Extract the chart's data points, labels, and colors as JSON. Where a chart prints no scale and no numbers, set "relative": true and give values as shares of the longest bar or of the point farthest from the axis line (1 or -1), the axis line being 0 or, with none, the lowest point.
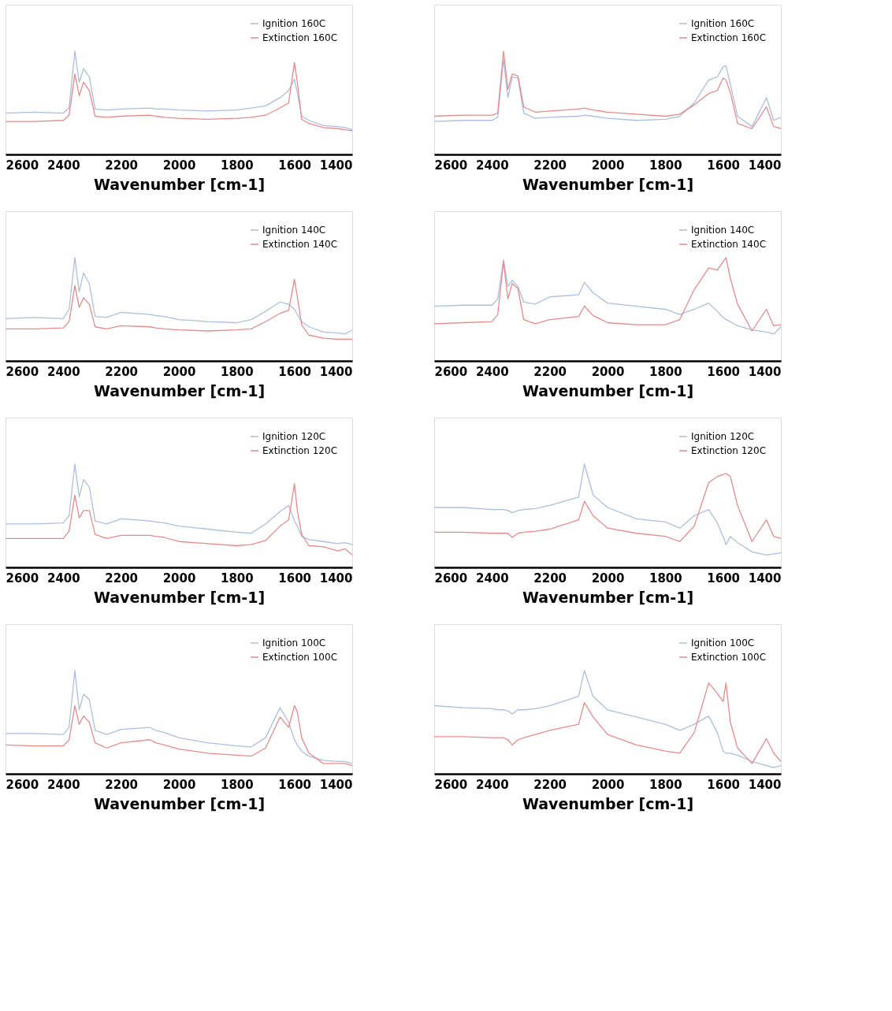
{
  "chart_data": [
    {
      "type": "line",
      "relative": true,
      "xlabel": "Wavenumber [cm-1]",
      "xlim": [
        2600,
        1400
      ],
      "xticks": [
        2600,
        2400,
        2200,
        2000,
        1800,
        1600,
        1400
      ],
      "grid": false,
      "legend": "top right",
      "line_style": "solid",
      "x": [
        2600,
        2500,
        2400,
        2380,
        2360,
        2345,
        2330,
        2310,
        2290,
        2250,
        2200,
        2100,
        2080,
        2050,
        2000,
        1900,
        1800,
        1750,
        1700,
        1650,
        1620,
        1600,
        1590,
        1575,
        1550,
        1500,
        1450,
        1425,
        1400
      ],
      "series": [
        {
          "name": "Ignition 160C",
          "color": "#a9bfdf",
          "values": [
            0.4,
            0.41,
            0.4,
            0.45,
            1.0,
            0.7,
            0.83,
            0.75,
            0.44,
            0.43,
            0.44,
            0.45,
            0.44,
            0.44,
            0.43,
            0.42,
            0.43,
            0.45,
            0.47,
            0.55,
            0.62,
            0.73,
            0.6,
            0.37,
            0.33,
            0.28,
            0.27,
            0.26,
            0.24
          ]
        },
        {
          "name": "Extinction 160C",
          "color": "#e88a8a",
          "values": [
            0.32,
            0.32,
            0.33,
            0.38,
            0.78,
            0.57,
            0.7,
            0.62,
            0.37,
            0.36,
            0.37,
            0.38,
            0.37,
            0.36,
            0.35,
            0.34,
            0.35,
            0.36,
            0.38,
            0.45,
            0.5,
            0.89,
            0.7,
            0.34,
            0.3,
            0.26,
            0.25,
            0.24,
            0.23
          ]
        }
      ]
    },
    {
      "type": "line",
      "relative": true,
      "xlabel": "Wavenumber [cm-1]",
      "xlim": [
        2600,
        1400
      ],
      "xticks": [
        2600,
        2400,
        2200,
        2000,
        1800,
        1600,
        1400
      ],
      "grid": false,
      "legend": "top right",
      "line_style": "solid",
      "x": [
        2600,
        2500,
        2400,
        2380,
        2360,
        2345,
        2330,
        2310,
        2290,
        2250,
        2200,
        2100,
        2080,
        2050,
        2000,
        1900,
        1800,
        1750,
        1700,
        1650,
        1620,
        1600,
        1590,
        1575,
        1550,
        1500,
        1450,
        1425,
        1400
      ],
      "series": [
        {
          "name": "Ignition 160C",
          "color": "#a9bfdf",
          "values": [
            0.32,
            0.33,
            0.33,
            0.36,
            0.92,
            0.55,
            0.75,
            0.74,
            0.4,
            0.35,
            0.36,
            0.37,
            0.38,
            0.37,
            0.35,
            0.33,
            0.34,
            0.37,
            0.5,
            0.72,
            0.75,
            0.85,
            0.86,
            0.68,
            0.37,
            0.27,
            0.55,
            0.33,
            0.36
          ]
        },
        {
          "name": "Extinction 160C",
          "color": "#e88a8a",
          "values": [
            0.37,
            0.38,
            0.38,
            0.4,
            1.0,
            0.63,
            0.78,
            0.76,
            0.46,
            0.41,
            0.42,
            0.44,
            0.45,
            0.43,
            0.41,
            0.39,
            0.37,
            0.39,
            0.48,
            0.59,
            0.62,
            0.74,
            0.72,
            0.6,
            0.3,
            0.25,
            0.46,
            0.27,
            0.25
          ]
        }
      ]
    },
    {
      "type": "line",
      "relative": true,
      "xlabel": "Wavenumber [cm-1]",
      "xlim": [
        2600,
        1400
      ],
      "xticks": [
        2600,
        2400,
        2200,
        2000,
        1800,
        1600,
        1400
      ],
      "grid": false,
      "legend": "top right",
      "line_style": "solid",
      "x": [
        2600,
        2500,
        2400,
        2380,
        2360,
        2345,
        2330,
        2310,
        2290,
        2250,
        2200,
        2100,
        2080,
        2050,
        2000,
        1900,
        1800,
        1750,
        1700,
        1650,
        1620,
        1600,
        1590,
        1575,
        1550,
        1500,
        1450,
        1425,
        1400
      ],
      "series": [
        {
          "name": "Ignition 140C",
          "color": "#a9bfdf",
          "values": [
            0.41,
            0.42,
            0.41,
            0.5,
            1.0,
            0.67,
            0.85,
            0.75,
            0.43,
            0.42,
            0.47,
            0.45,
            0.44,
            0.43,
            0.4,
            0.38,
            0.37,
            0.4,
            0.48,
            0.57,
            0.55,
            0.5,
            0.45,
            0.38,
            0.33,
            0.28,
            0.27,
            0.26,
            0.3
          ]
        },
        {
          "name": "Extinction 140C",
          "color": "#e88a8a",
          "values": [
            0.31,
            0.31,
            0.32,
            0.38,
            0.73,
            0.52,
            0.61,
            0.55,
            0.33,
            0.31,
            0.34,
            0.33,
            0.32,
            0.31,
            0.3,
            0.29,
            0.3,
            0.31,
            0.38,
            0.46,
            0.49,
            0.79,
            0.62,
            0.35,
            0.25,
            0.22,
            0.21,
            0.21,
            0.21
          ]
        }
      ]
    },
    {
      "type": "line",
      "relative": true,
      "xlabel": "Wavenumber [cm-1]",
      "xlim": [
        2600,
        1400
      ],
      "xticks": [
        2600,
        2400,
        2200,
        2000,
        1800,
        1600,
        1400
      ],
      "grid": false,
      "legend": "top right",
      "line_style": "solid",
      "x": [
        2600,
        2500,
        2400,
        2380,
        2360,
        2345,
        2330,
        2310,
        2290,
        2250,
        2200,
        2100,
        2080,
        2050,
        2000,
        1900,
        1800,
        1750,
        1700,
        1650,
        1620,
        1600,
        1590,
        1575,
        1550,
        1500,
        1450,
        1425,
        1400
      ],
      "series": [
        {
          "name": "Ignition 140C",
          "color": "#a9bfdf",
          "values": [
            0.53,
            0.54,
            0.54,
            0.6,
            0.98,
            0.72,
            0.78,
            0.72,
            0.57,
            0.55,
            0.62,
            0.64,
            0.76,
            0.66,
            0.56,
            0.53,
            0.5,
            0.45,
            0.5,
            0.56,
            0.48,
            0.42,
            0.4,
            0.38,
            0.34,
            0.3,
            0.28,
            0.26,
            0.33
          ]
        },
        {
          "name": "Extinction 140C",
          "color": "#e88a8a",
          "values": [
            0.36,
            0.37,
            0.38,
            0.45,
            0.96,
            0.6,
            0.75,
            0.7,
            0.4,
            0.36,
            0.4,
            0.43,
            0.53,
            0.44,
            0.37,
            0.35,
            0.35,
            0.4,
            0.69,
            0.9,
            0.88,
            0.96,
            1.0,
            0.8,
            0.55,
            0.29,
            0.5,
            0.34,
            0.35
          ]
        }
      ]
    },
    {
      "type": "line",
      "relative": true,
      "xlabel": "Wavenumber [cm-1]",
      "xlim": [
        2600,
        1400
      ],
      "xticks": [
        2600,
        2400,
        2200,
        2000,
        1800,
        1600,
        1400
      ],
      "grid": false,
      "legend": "top right",
      "line_style": "solid",
      "x": [
        2600,
        2500,
        2400,
        2380,
        2360,
        2345,
        2330,
        2310,
        2290,
        2250,
        2200,
        2100,
        2080,
        2050,
        2000,
        1900,
        1800,
        1750,
        1700,
        1650,
        1620,
        1600,
        1590,
        1575,
        1550,
        1500,
        1450,
        1425,
        1400
      ],
      "series": [
        {
          "name": "Ignition 120C",
          "color": "#a9bfdf",
          "values": [
            0.42,
            0.42,
            0.43,
            0.5,
            1.0,
            0.68,
            0.85,
            0.78,
            0.45,
            0.42,
            0.47,
            0.45,
            0.44,
            0.43,
            0.4,
            0.37,
            0.34,
            0.33,
            0.42,
            0.54,
            0.6,
            0.45,
            0.4,
            0.3,
            0.27,
            0.25,
            0.23,
            0.24,
            0.22
          ]
        },
        {
          "name": "Extinction 120C",
          "color": "#e88a8a",
          "values": [
            0.28,
            0.28,
            0.28,
            0.35,
            0.7,
            0.48,
            0.55,
            0.55,
            0.32,
            0.28,
            0.31,
            0.31,
            0.3,
            0.29,
            0.25,
            0.23,
            0.21,
            0.22,
            0.26,
            0.4,
            0.46,
            0.81,
            0.55,
            0.32,
            0.21,
            0.2,
            0.16,
            0.18,
            0.12
          ]
        }
      ]
    },
    {
      "type": "line",
      "relative": true,
      "xlabel": "Wavenumber [cm-1]",
      "xlim": [
        2600,
        1400
      ],
      "xticks": [
        2600,
        2400,
        2200,
        2000,
        1800,
        1600,
        1400
      ],
      "grid": false,
      "legend": "top right",
      "line_style": "solid",
      "x": [
        2600,
        2500,
        2400,
        2380,
        2360,
        2345,
        2330,
        2310,
        2290,
        2250,
        2200,
        2100,
        2080,
        2050,
        2000,
        1900,
        1800,
        1750,
        1700,
        1650,
        1620,
        1600,
        1590,
        1575,
        1550,
        1500,
        1450,
        1425,
        1400
      ],
      "series": [
        {
          "name": "Ignition 120C",
          "color": "#a9bfdf",
          "values": [
            0.58,
            0.58,
            0.56,
            0.56,
            0.56,
            0.55,
            0.53,
            0.55,
            0.56,
            0.57,
            0.6,
            0.68,
            1.0,
            0.7,
            0.58,
            0.47,
            0.44,
            0.38,
            0.5,
            0.56,
            0.43,
            0.3,
            0.22,
            0.3,
            0.24,
            0.15,
            0.12,
            0.13,
            0.14
          ]
        },
        {
          "name": "Extinction 120C",
          "color": "#e88a8a",
          "values": [
            0.34,
            0.34,
            0.33,
            0.33,
            0.33,
            0.33,
            0.29,
            0.33,
            0.34,
            0.35,
            0.37,
            0.46,
            0.64,
            0.5,
            0.38,
            0.33,
            0.3,
            0.25,
            0.4,
            0.82,
            0.88,
            0.9,
            0.91,
            0.88,
            0.6,
            0.25,
            0.46,
            0.3,
            0.28
          ]
        }
      ]
    },
    {
      "type": "line",
      "relative": true,
      "xlabel": "Wavenumber [cm-1]",
      "xlim": [
        2600,
        1400
      ],
      "xticks": [
        2600,
        2400,
        2200,
        2000,
        1800,
        1600,
        1400
      ],
      "grid": false,
      "legend": "top right",
      "line_style": "solid",
      "x": [
        2600,
        2500,
        2400,
        2380,
        2360,
        2345,
        2330,
        2310,
        2290,
        2250,
        2200,
        2100,
        2080,
        2050,
        2000,
        1900,
        1800,
        1750,
        1700,
        1650,
        1620,
        1600,
        1590,
        1575,
        1550,
        1500,
        1450,
        1425,
        1400
      ],
      "series": [
        {
          "name": "Ignition 100C",
          "color": "#a9bfdf",
          "values": [
            0.39,
            0.39,
            0.38,
            0.45,
            1.0,
            0.62,
            0.77,
            0.72,
            0.42,
            0.38,
            0.43,
            0.45,
            0.42,
            0.4,
            0.35,
            0.3,
            0.27,
            0.26,
            0.35,
            0.64,
            0.5,
            0.33,
            0.28,
            0.22,
            0.17,
            0.13,
            0.12,
            0.12,
            0.1
          ]
        },
        {
          "name": "Extinction 100C",
          "color": "#e88a8a",
          "values": [
            0.28,
            0.27,
            0.27,
            0.33,
            0.66,
            0.48,
            0.56,
            0.5,
            0.3,
            0.25,
            0.3,
            0.33,
            0.3,
            0.28,
            0.24,
            0.2,
            0.18,
            0.17,
            0.25,
            0.55,
            0.45,
            0.66,
            0.6,
            0.35,
            0.2,
            0.1,
            0.1,
            0.1,
            0.08
          ]
        }
      ]
    },
    {
      "type": "line",
      "relative": true,
      "xlabel": "Wavenumber [cm-1]",
      "xlim": [
        2600,
        1400
      ],
      "xticks": [
        2600,
        2400,
        2200,
        2000,
        1800,
        1600,
        1400
      ],
      "grid": false,
      "legend": "top right",
      "line_style": "solid",
      "x": [
        2600,
        2500,
        2400,
        2380,
        2360,
        2345,
        2330,
        2310,
        2290,
        2250,
        2200,
        2100,
        2080,
        2050,
        2000,
        1900,
        1800,
        1750,
        1700,
        1650,
        1620,
        1600,
        1590,
        1575,
        1550,
        1500,
        1450,
        1425,
        1400
      ],
      "series": [
        {
          "name": "Ignition 100C",
          "color": "#a9bfdf",
          "values": [
            0.66,
            0.64,
            0.63,
            0.62,
            0.62,
            0.61,
            0.58,
            0.62,
            0.62,
            0.63,
            0.66,
            0.75,
            1.0,
            0.75,
            0.62,
            0.55,
            0.48,
            0.42,
            0.48,
            0.56,
            0.4,
            0.22,
            0.2,
            0.2,
            0.18,
            0.12,
            0.08,
            0.06,
            0.08
          ]
        },
        {
          "name": "Extinction 100C",
          "color": "#e88a8a",
          "values": [
            0.36,
            0.36,
            0.35,
            0.35,
            0.35,
            0.33,
            0.28,
            0.33,
            0.35,
            0.38,
            0.42,
            0.48,
            0.69,
            0.55,
            0.38,
            0.28,
            0.22,
            0.2,
            0.4,
            0.88,
            0.78,
            0.7,
            0.88,
            0.5,
            0.25,
            0.1,
            0.34,
            0.2,
            0.12
          ]
        }
      ]
    }
  ]
}
